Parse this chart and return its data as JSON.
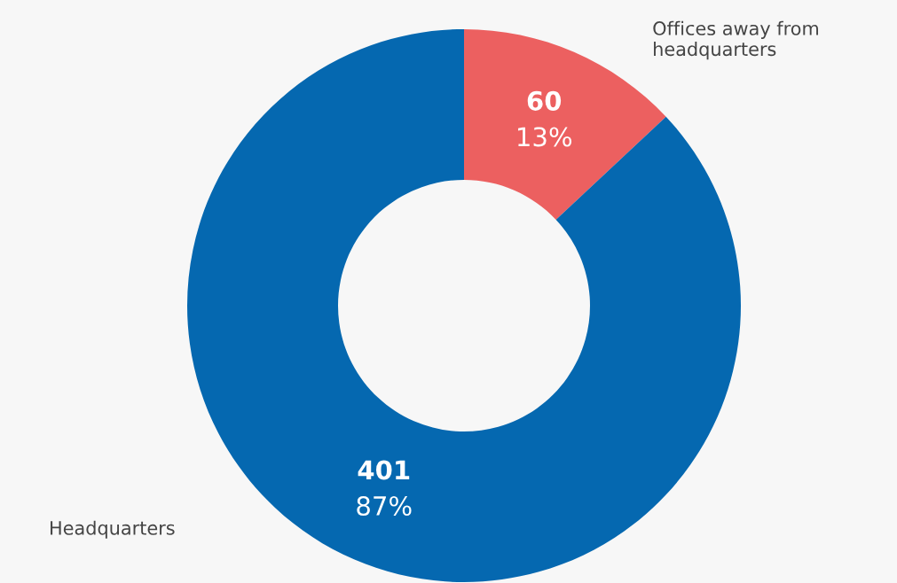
{
  "chart_data": {
    "type": "donut",
    "categories": [
      "Offices away from headquarters",
      "Headquarters"
    ],
    "values": [
      60,
      401
    ],
    "colors": [
      "#ec6060",
      "#0568b0"
    ],
    "value_labels": [
      "60\n13%",
      "401\n87%"
    ]
  }
}
